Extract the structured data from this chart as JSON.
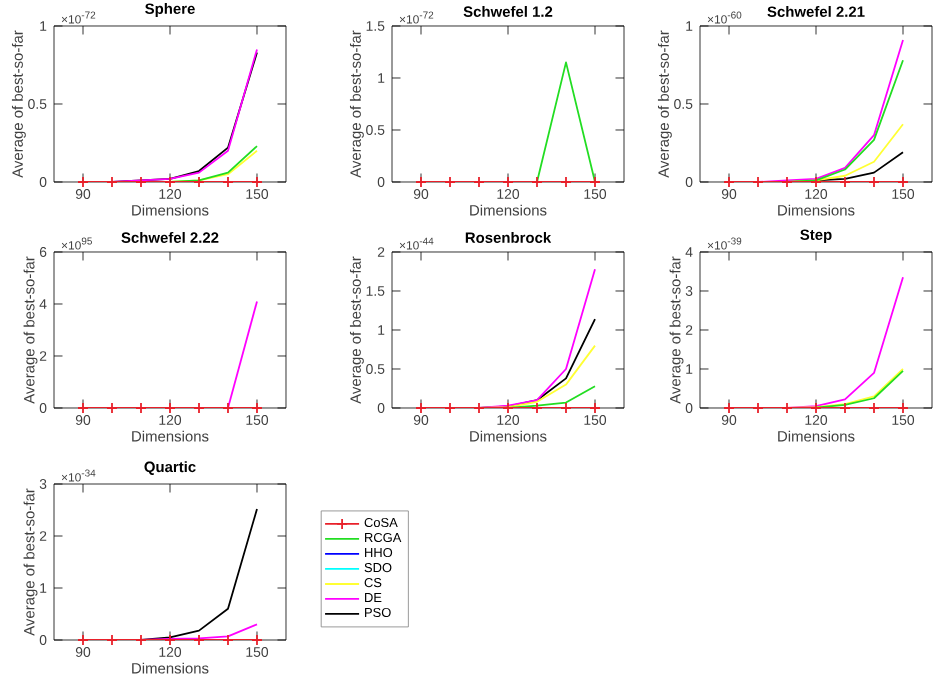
{
  "chart_data": [
    {
      "type": "line",
      "title": "Sphere",
      "xlabel": "Dimensions",
      "ylabel": "Average of best-so-far",
      "annotations": [
        "×10$^{-72}$"
      ],
      "x": [
        90,
        100,
        110,
        120,
        130,
        140,
        150
      ],
      "xlim": [
        80,
        160
      ],
      "xticks": [
        90,
        120,
        150
      ],
      "ylim": [
        0,
        1
      ],
      "yticks": [
        0,
        0.5,
        1
      ],
      "series": [
        {
          "color": "#e8202a",
          "marker": "cross",
          "values": [
            0,
            0,
            0,
            0,
            0,
            0,
            0
          ]
        },
        {
          "color": "#22dd22",
          "values": [
            null,
            null,
            null,
            0,
            0.01,
            0.06,
            0.23
          ]
        },
        {
          "color": "#0000ff",
          "values": [
            null,
            null,
            null,
            null,
            null,
            null,
            null
          ]
        },
        {
          "color": "#00ffff",
          "values": [
            null,
            null,
            null,
            null,
            null,
            null,
            null
          ]
        },
        {
          "color": "#ffff33",
          "values": [
            null,
            null,
            null,
            0,
            0.01,
            0.05,
            0.2
          ]
        },
        {
          "color": "#ff00ff",
          "values": [
            null,
            0,
            0.01,
            0.02,
            0.06,
            0.2,
            0.85
          ]
        },
        {
          "color": "#000000",
          "values": [
            null,
            0,
            0.01,
            0.02,
            0.07,
            0.22,
            0.83
          ]
        }
      ]
    },
    {
      "type": "line",
      "title": "Schwefel 1.2",
      "xlabel": "Dimensions",
      "ylabel": "Average of best-so-far",
      "annotations": [
        "×10$^{-72}$"
      ],
      "x": [
        90,
        100,
        110,
        120,
        130,
        140,
        150
      ],
      "xlim": [
        80,
        160
      ],
      "xticks": [
        90,
        120,
        150
      ],
      "ylim": [
        0,
        1.5
      ],
      "yticks": [
        0,
        0.5,
        1,
        1.5
      ],
      "series": [
        {
          "color": "#e8202a",
          "marker": "cross",
          "values": [
            0,
            0,
            0,
            0,
            0,
            0,
            0
          ]
        },
        {
          "color": "#22dd22",
          "values": [
            null,
            null,
            null,
            null,
            0,
            1.15,
            0
          ]
        },
        {
          "color": "#0000ff",
          "values": [
            null,
            null,
            null,
            null,
            null,
            null,
            null
          ]
        },
        {
          "color": "#00ffff",
          "values": [
            null,
            null,
            null,
            null,
            null,
            null,
            null
          ]
        },
        {
          "color": "#ffff33",
          "values": [
            null,
            null,
            null,
            null,
            null,
            null,
            null
          ]
        },
        {
          "color": "#ff00ff",
          "values": [
            null,
            null,
            null,
            null,
            null,
            null,
            null
          ]
        },
        {
          "color": "#000000",
          "values": [
            null,
            null,
            null,
            null,
            null,
            null,
            null
          ]
        }
      ]
    },
    {
      "type": "line",
      "title": "Schwefel 2.21",
      "xlabel": "Dimensions",
      "ylabel": "Average of best-so-far",
      "annotations": [
        "×10$^{-60}$"
      ],
      "x": [
        90,
        100,
        110,
        120,
        130,
        140,
        150
      ],
      "xlim": [
        80,
        160
      ],
      "xticks": [
        90,
        120,
        150
      ],
      "ylim": [
        0,
        1
      ],
      "yticks": [
        0,
        0.5,
        1
      ],
      "series": [
        {
          "color": "#e8202a",
          "marker": "cross",
          "values": [
            0,
            0,
            0,
            0,
            0,
            0,
            0
          ]
        },
        {
          "color": "#22dd22",
          "values": [
            null,
            null,
            0,
            0.01,
            0.08,
            0.27,
            0.78
          ]
        },
        {
          "color": "#0000ff",
          "values": [
            null,
            null,
            null,
            null,
            null,
            null,
            null
          ]
        },
        {
          "color": "#00ffff",
          "values": [
            null,
            null,
            null,
            null,
            null,
            null,
            null
          ]
        },
        {
          "color": "#ffff33",
          "values": [
            null,
            null,
            0,
            0.01,
            0.04,
            0.13,
            0.37
          ]
        },
        {
          "color": "#ff00ff",
          "values": [
            null,
            0,
            0.01,
            0.02,
            0.09,
            0.3,
            0.91
          ]
        },
        {
          "color": "#000000",
          "values": [
            null,
            null,
            0,
            0.01,
            0.02,
            0.06,
            0.19
          ]
        }
      ]
    },
    {
      "type": "line",
      "title": "Schwefel 2.22",
      "xlabel": "Dimensions",
      "ylabel": "Average of best-so-far",
      "annotations": [
        "×10$^{95}$"
      ],
      "x": [
        90,
        100,
        110,
        120,
        130,
        140,
        150
      ],
      "xlim": [
        80,
        160
      ],
      "xticks": [
        90,
        120,
        150
      ],
      "ylim": [
        0,
        6
      ],
      "yticks": [
        0,
        2,
        4,
        6
      ],
      "series": [
        {
          "color": "#e8202a",
          "marker": "cross",
          "values": [
            0,
            0,
            0,
            0,
            0,
            0,
            0
          ]
        },
        {
          "color": "#22dd22",
          "values": [
            null,
            null,
            null,
            null,
            null,
            null,
            null
          ]
        },
        {
          "color": "#0000ff",
          "values": [
            null,
            null,
            null,
            null,
            null,
            null,
            null
          ]
        },
        {
          "color": "#00ffff",
          "values": [
            null,
            null,
            null,
            null,
            null,
            null,
            null
          ]
        },
        {
          "color": "#ffff33",
          "values": [
            null,
            null,
            null,
            null,
            null,
            null,
            null
          ]
        },
        {
          "color": "#ff00ff",
          "values": [
            null,
            null,
            null,
            null,
            null,
            0,
            4.1
          ]
        },
        {
          "color": "#000000",
          "values": [
            null,
            null,
            null,
            null,
            null,
            null,
            null
          ]
        }
      ]
    },
    {
      "type": "line",
      "title": "Rosenbrock",
      "xlabel": "Dimensions",
      "ylabel": "Average of best-so-far",
      "annotations": [
        "×10$^{-44}$"
      ],
      "x": [
        90,
        100,
        110,
        120,
        130,
        140,
        150
      ],
      "xlim": [
        80,
        160
      ],
      "xticks": [
        90,
        120,
        150
      ],
      "ylim": [
        0,
        2
      ],
      "yticks": [
        0,
        0.5,
        1,
        1.5,
        2
      ],
      "series": [
        {
          "color": "#e8202a",
          "marker": "cross",
          "values": [
            0,
            0,
            0,
            0,
            0,
            0,
            0
          ]
        },
        {
          "color": "#22dd22",
          "values": [
            null,
            null,
            null,
            0,
            0.03,
            0.07,
            0.28
          ]
        },
        {
          "color": "#0000ff",
          "values": [
            null,
            null,
            null,
            null,
            null,
            null,
            null
          ]
        },
        {
          "color": "#00ffff",
          "values": [
            null,
            null,
            null,
            null,
            null,
            null,
            null
          ]
        },
        {
          "color": "#ffff33",
          "values": [
            null,
            null,
            0,
            0.01,
            0.08,
            0.3,
            0.8
          ]
        },
        {
          "color": "#ff00ff",
          "values": [
            null,
            null,
            0,
            0.03,
            0.1,
            0.5,
            1.78
          ]
        },
        {
          "color": "#000000",
          "values": [
            null,
            null,
            0,
            0.02,
            0.1,
            0.38,
            1.14
          ]
        }
      ]
    },
    {
      "type": "line",
      "title": "Step",
      "xlabel": "Dimensions",
      "ylabel": "Average of best-so-far",
      "annotations": [
        "×10$^{-39}$"
      ],
      "x": [
        90,
        100,
        110,
        120,
        130,
        140,
        150
      ],
      "xlim": [
        80,
        160
      ],
      "xticks": [
        90,
        120,
        150
      ],
      "ylim": [
        0,
        4
      ],
      "yticks": [
        0,
        1,
        2,
        3,
        4
      ],
      "series": [
        {
          "color": "#e8202a",
          "marker": "cross",
          "values": [
            0,
            0,
            0,
            0,
            0,
            0,
            0
          ]
        },
        {
          "color": "#22dd22",
          "values": [
            null,
            null,
            0,
            0.01,
            0.08,
            0.25,
            0.95
          ]
        },
        {
          "color": "#0000ff",
          "values": [
            null,
            null,
            null,
            null,
            null,
            null,
            null
          ]
        },
        {
          "color": "#00ffff",
          "values": [
            null,
            null,
            null,
            null,
            null,
            null,
            null
          ]
        },
        {
          "color": "#ffff33",
          "values": [
            null,
            null,
            0,
            0.02,
            0.1,
            0.3,
            1.0
          ]
        },
        {
          "color": "#ff00ff",
          "values": [
            null,
            null,
            0,
            0.05,
            0.22,
            0.9,
            3.35
          ]
        },
        {
          "color": "#000000",
          "values": [
            null,
            null,
            null,
            null,
            null,
            null,
            null
          ]
        }
      ]
    },
    {
      "type": "line",
      "title": "Quartic",
      "xlabel": "Dimensions",
      "ylabel": "Average of best-so-far",
      "annotations": [
        "×10$^{-34}$"
      ],
      "x": [
        90,
        100,
        110,
        120,
        130,
        140,
        150
      ],
      "xlim": [
        80,
        160
      ],
      "xticks": [
        90,
        120,
        150
      ],
      "ylim": [
        0,
        3
      ],
      "yticks": [
        0,
        1,
        2,
        3
      ],
      "legend": "right",
      "series": [
        {
          "name": "CoSA",
          "color": "#e8202a",
          "marker": "cross",
          "values": [
            0,
            0,
            0,
            0,
            0,
            0,
            0
          ]
        },
        {
          "name": "RCGA",
          "color": "#22dd22",
          "values": [
            null,
            null,
            null,
            null,
            null,
            null,
            null
          ]
        },
        {
          "name": "HHO",
          "color": "#0000ff",
          "values": [
            null,
            null,
            null,
            null,
            null,
            null,
            null
          ]
        },
        {
          "name": "SDO",
          "color": "#00ffff",
          "values": [
            null,
            null,
            null,
            null,
            null,
            null,
            null
          ]
        },
        {
          "name": "CS",
          "color": "#ffff33",
          "values": [
            null,
            null,
            null,
            null,
            null,
            null,
            null
          ]
        },
        {
          "name": "DE",
          "color": "#ff00ff",
          "values": [
            null,
            null,
            0,
            0.02,
            0.03,
            0.07,
            0.3
          ]
        },
        {
          "name": "PSO",
          "color": "#000000",
          "values": [
            null,
            null,
            0,
            0.05,
            0.18,
            0.6,
            2.52
          ]
        }
      ]
    }
  ]
}
